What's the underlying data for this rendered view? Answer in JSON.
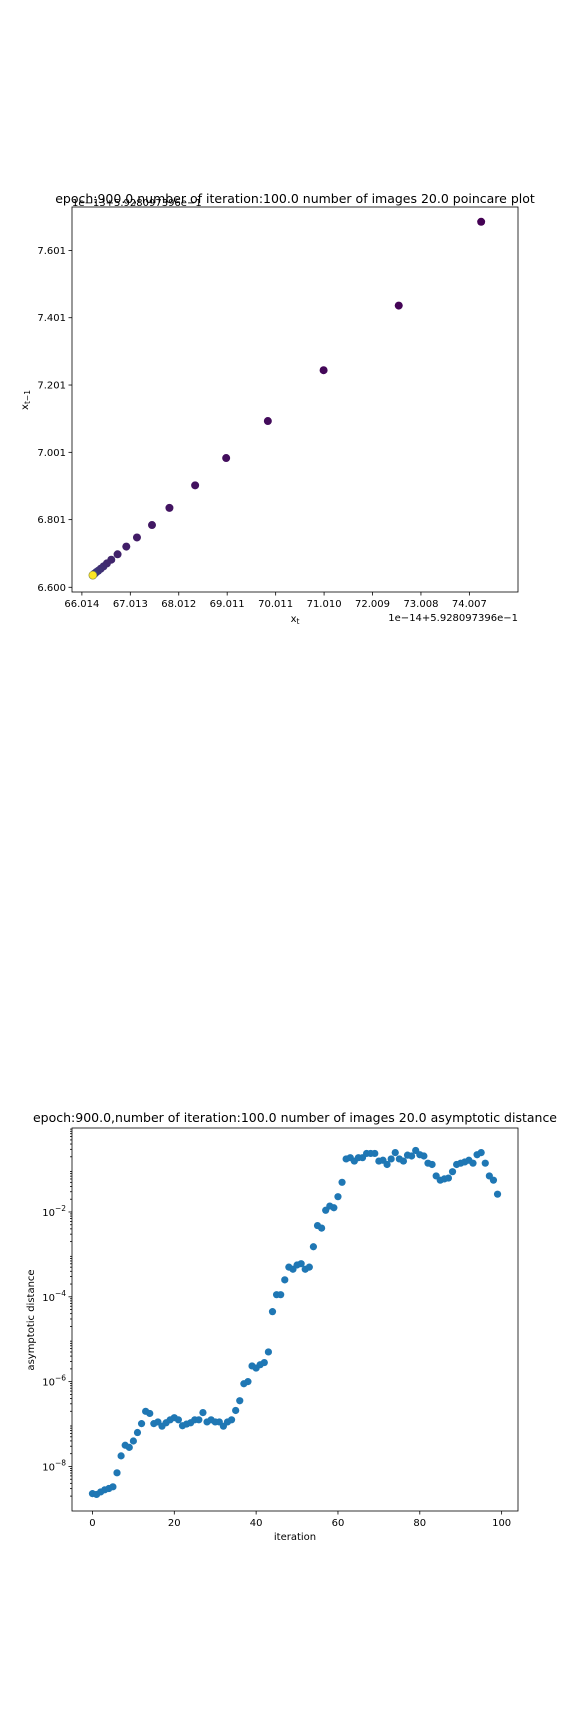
{
  "chart_data": [
    {
      "type": "scatter",
      "title": "epoch:900.0,number of iteration:100.0 number of images 20.0 poincare plot",
      "xlabel": "x_t",
      "ylabel": "x_{t-1}",
      "x_offset_text": "1e−14+5.928097396e−1",
      "y_offset_text": "1e−13+5.928097396e−1",
      "xticks": [
        "66.014",
        "67.013",
        "68.012",
        "69.011",
        "70.011",
        "71.010",
        "72.009",
        "73.008",
        "74.007"
      ],
      "yticks": [
        "6.600",
        "6.801",
        "7.001",
        "7.201",
        "7.401",
        "7.601"
      ],
      "xlim": [
        65.81,
        75.01
      ],
      "ylim": [
        6.586,
        7.73
      ],
      "colormap": "viridis",
      "points": [
        {
          "x": 74.25,
          "y": 7.686,
          "c": 0.0
        },
        {
          "x": 72.55,
          "y": 7.437,
          "c": 0.01
        },
        {
          "x": 71.0,
          "y": 7.245,
          "c": 0.02
        },
        {
          "x": 69.85,
          "y": 7.094,
          "c": 0.03
        },
        {
          "x": 68.99,
          "y": 6.984,
          "c": 0.04
        },
        {
          "x": 68.35,
          "y": 6.903,
          "c": 0.05
        },
        {
          "x": 67.82,
          "y": 6.836,
          "c": 0.06
        },
        {
          "x": 67.46,
          "y": 6.785,
          "c": 0.07
        },
        {
          "x": 67.15,
          "y": 6.748,
          "c": 0.08
        },
        {
          "x": 66.93,
          "y": 6.721,
          "c": 0.09
        },
        {
          "x": 66.75,
          "y": 6.698,
          "c": 0.1
        },
        {
          "x": 66.62,
          "y": 6.682,
          "c": 0.11
        },
        {
          "x": 66.53,
          "y": 6.671,
          "c": 0.12
        },
        {
          "x": 66.46,
          "y": 6.662,
          "c": 0.13
        },
        {
          "x": 66.4,
          "y": 6.655,
          "c": 0.14
        },
        {
          "x": 66.35,
          "y": 6.649,
          "c": 0.15
        },
        {
          "x": 66.31,
          "y": 6.645,
          "c": 0.16
        },
        {
          "x": 66.28,
          "y": 6.641,
          "c": 0.17
        },
        {
          "x": 66.26,
          "y": 6.639,
          "c": 0.18
        },
        {
          "x": 66.25,
          "y": 6.637,
          "c": 0.19
        },
        {
          "x": 66.24,
          "y": 6.636,
          "c": 1.0
        }
      ]
    },
    {
      "type": "scatter",
      "title": "epoch:900.0,number of iteration:100.0  number of images 20.0 asymptotic distance",
      "xlabel": "iteration",
      "ylabel": "asymptotic distance",
      "yscale": "log",
      "xticks": [
        0,
        20,
        40,
        60,
        80,
        100
      ],
      "yticks": [
        "10^{-8}",
        "10^{-6}",
        "10^{-4}",
        "10^{-2}"
      ],
      "xlim": [
        -5,
        104
      ],
      "ylim_log10": [
        -9.05,
        -0.02
      ],
      "color": "#1f77b4",
      "x": [
        0,
        1,
        2,
        3,
        4,
        5,
        6,
        7,
        8,
        9,
        10,
        11,
        12,
        13,
        14,
        15,
        16,
        17,
        18,
        19,
        20,
        21,
        22,
        23,
        24,
        25,
        26,
        27,
        28,
        29,
        30,
        31,
        32,
        33,
        34,
        35,
        36,
        37,
        38,
        39,
        40,
        41,
        42,
        43,
        44,
        45,
        46,
        47,
        48,
        49,
        50,
        51,
        52,
        53,
        54,
        55,
        56,
        57,
        58,
        59,
        60,
        61,
        62,
        63,
        64,
        65,
        66,
        67,
        68,
        69,
        70,
        71,
        72,
        73,
        74,
        75,
        76,
        77,
        78,
        79,
        80,
        81,
        82,
        83,
        84,
        85,
        86,
        87,
        88,
        89,
        90,
        91,
        92,
        93,
        94,
        95,
        96,
        97,
        98,
        99
      ],
      "log10_y": [
        -8.64,
        -8.66,
        -8.6,
        -8.55,
        -8.52,
        -8.48,
        -8.15,
        -7.75,
        -7.5,
        -7.55,
        -7.4,
        -7.2,
        -6.99,
        -6.7,
        -6.75,
        -6.99,
        -6.95,
        -7.05,
        -6.97,
        -6.9,
        -6.85,
        -6.9,
        -7.04,
        -7.0,
        -6.97,
        -6.9,
        -6.9,
        -6.73,
        -6.95,
        -6.9,
        -6.95,
        -6.95,
        -7.05,
        -6.95,
        -6.9,
        -6.68,
        -6.45,
        -6.05,
        -6.0,
        -5.63,
        -5.68,
        -5.6,
        -5.55,
        -5.3,
        -4.35,
        -3.95,
        -3.95,
        -3.6,
        -3.3,
        -3.35,
        -3.25,
        -3.22,
        -3.35,
        -3.3,
        -2.82,
        -2.32,
        -2.38,
        -1.96,
        -1.86,
        -1.9,
        -1.64,
        -1.3,
        -0.75,
        -0.72,
        -0.8,
        -0.72,
        -0.72,
        -0.62,
        -0.62,
        -0.62,
        -0.8,
        -0.78,
        -0.88,
        -0.75,
        -0.6,
        -0.75,
        -0.8,
        -0.66,
        -0.68,
        -0.55,
        -0.65,
        -0.68,
        -0.85,
        -0.88,
        -1.15,
        -1.25,
        -1.22,
        -1.2,
        -1.05,
        -0.88,
        -0.85,
        -0.82,
        -0.78,
        -0.85,
        -0.65,
        -0.6,
        -0.85,
        -1.15,
        -1.25,
        -1.58
      ]
    }
  ]
}
